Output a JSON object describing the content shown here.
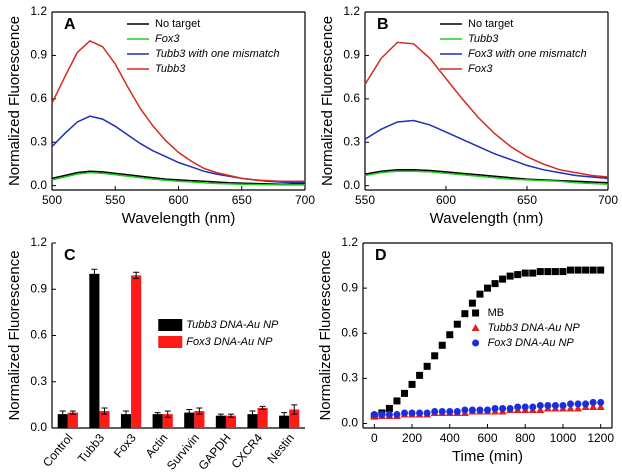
{
  "chart_data": [
    {
      "type": "line",
      "label": "A",
      "xlabel": "Wavelength (nm)",
      "ylabel": "Normalized Fluorescence",
      "x": [
        500,
        510,
        520,
        530,
        540,
        550,
        560,
        570,
        580,
        590,
        600,
        610,
        620,
        630,
        640,
        650,
        660,
        670,
        680,
        690,
        700
      ],
      "series": [
        {
          "name": "No target",
          "color": "#000000",
          "values": [
            0.05,
            0.07,
            0.09,
            0.1,
            0.095,
            0.085,
            0.075,
            0.065,
            0.055,
            0.045,
            0.04,
            0.035,
            0.03,
            0.025,
            0.02,
            0.018,
            0.015,
            0.012,
            0.01,
            0.01,
            0.01
          ]
        },
        {
          "name": "Fox3",
          "color": "#22cc22",
          "values": [
            0.04,
            0.06,
            0.08,
            0.09,
            0.085,
            0.075,
            0.065,
            0.055,
            0.045,
            0.038,
            0.03,
            0.025,
            0.02,
            0.015,
            0.012,
            0.01,
            0.008,
            0.006,
            0.005,
            0.005,
            0.005
          ]
        },
        {
          "name": "Tubb3 with one mismatch",
          "color": "#1f2fb8",
          "values": [
            0.27,
            0.36,
            0.44,
            0.48,
            0.46,
            0.41,
            0.35,
            0.29,
            0.24,
            0.2,
            0.16,
            0.13,
            0.1,
            0.08,
            0.065,
            0.05,
            0.04,
            0.03,
            0.025,
            0.02,
            0.02
          ]
        },
        {
          "name": "Tubb3",
          "color": "#d42a20",
          "values": [
            0.57,
            0.75,
            0.92,
            1.0,
            0.96,
            0.84,
            0.68,
            0.53,
            0.41,
            0.31,
            0.23,
            0.17,
            0.12,
            0.09,
            0.07,
            0.05,
            0.04,
            0.035,
            0.03,
            0.03,
            0.03
          ]
        }
      ],
      "xlim": [
        500,
        700
      ],
      "xticks": [
        500,
        550,
        600,
        650,
        700
      ],
      "ylim": [
        -0.03,
        1.2
      ],
      "yticks": [
        {
          "value": 0,
          "label": "0.0"
        },
        0.3,
        0.6,
        0.9,
        1.2
      ],
      "legend": "upper right"
    },
    {
      "type": "line",
      "label": "B",
      "xlabel": "Wavelength (nm)",
      "ylabel": "Normalized Fluorescence",
      "x": [
        550,
        560,
        570,
        580,
        590,
        600,
        610,
        620,
        630,
        640,
        650,
        660,
        670,
        680,
        690,
        700
      ],
      "series": [
        {
          "name": "No target",
          "color": "#000000",
          "values": [
            0.08,
            0.1,
            0.11,
            0.11,
            0.105,
            0.095,
            0.085,
            0.075,
            0.065,
            0.055,
            0.045,
            0.04,
            0.035,
            0.03,
            0.025,
            0.02
          ]
        },
        {
          "name": "Tubb3",
          "color": "#22cc22",
          "values": [
            0.07,
            0.09,
            0.1,
            0.1,
            0.095,
            0.085,
            0.075,
            0.065,
            0.055,
            0.045,
            0.04,
            0.035,
            0.03,
            0.02,
            0.015,
            0.01
          ]
        },
        {
          "name": "Fox3 with one mismatch",
          "color": "#1f2fb8",
          "values": [
            0.32,
            0.39,
            0.44,
            0.45,
            0.42,
            0.37,
            0.32,
            0.27,
            0.22,
            0.18,
            0.14,
            0.11,
            0.09,
            0.07,
            0.06,
            0.05
          ]
        },
        {
          "name": "Fox3",
          "color": "#d42a20",
          "values": [
            0.7,
            0.88,
            0.99,
            0.98,
            0.88,
            0.74,
            0.6,
            0.47,
            0.36,
            0.27,
            0.2,
            0.15,
            0.11,
            0.09,
            0.07,
            0.06
          ]
        }
      ],
      "xlim": [
        550,
        700
      ],
      "xticks": [
        550,
        600,
        650,
        700
      ],
      "ylim": [
        -0.03,
        1.2
      ],
      "yticks": [
        {
          "value": 0,
          "label": "0.0"
        },
        0.3,
        0.6,
        0.9,
        1.2
      ],
      "legend": "upper right"
    },
    {
      "type": "bar",
      "label": "C",
      "ylabel": "Normalized Fluorescence",
      "categories": [
        "Control",
        "Tubb3",
        "Fox3",
        "Actin",
        "Survivin",
        "GAPDH",
        "CXCR4",
        "Nestin"
      ],
      "series": [
        {
          "name": "Tubb3 DNA-Au NP",
          "color": "#000000",
          "values": [
            0.09,
            1.0,
            0.09,
            0.09,
            0.1,
            0.08,
            0.09,
            0.08
          ],
          "errors": [
            0.02,
            0.03,
            0.02,
            0.01,
            0.02,
            0.01,
            0.02,
            0.02
          ]
        },
        {
          "name": "Fox3 DNA-Au NP",
          "color": "#ff1a1a",
          "values": [
            0.1,
            0.11,
            0.99,
            0.09,
            0.11,
            0.08,
            0.13,
            0.12
          ],
          "errors": [
            0.01,
            0.02,
            0.02,
            0.02,
            0.02,
            0.01,
            0.01,
            0.03
          ]
        }
      ],
      "ylim": [
        0,
        1.2
      ],
      "yticks": [
        {
          "value": 0,
          "label": "0.0"
        },
        0.3,
        0.6,
        0.9,
        1.2
      ],
      "legend": "center right"
    },
    {
      "type": "scatter",
      "label": "D",
      "xlabel": "Time (min)",
      "ylabel": "Normalized Fluorescence",
      "x": [
        0,
        40,
        80,
        120,
        160,
        200,
        240,
        280,
        320,
        360,
        400,
        440,
        480,
        520,
        560,
        600,
        640,
        680,
        720,
        760,
        800,
        840,
        880,
        920,
        960,
        1000,
        1040,
        1080,
        1120,
        1160,
        1200
      ],
      "series": [
        {
          "name": "MB",
          "color": "#000000",
          "marker": "square",
          "values": [
            0.05,
            0.07,
            0.1,
            0.15,
            0.2,
            0.26,
            0.32,
            0.38,
            0.45,
            0.52,
            0.59,
            0.66,
            0.73,
            0.8,
            0.86,
            0.9,
            0.93,
            0.96,
            0.98,
            0.99,
            1.0,
            1.0,
            1.01,
            1.01,
            1.01,
            1.01,
            1.02,
            1.02,
            1.02,
            1.02,
            1.02
          ]
        },
        {
          "name": "Tubb3 DNA-Au NP",
          "color": "#e0201a",
          "marker": "triangle",
          "values": [
            0.05,
            0.05,
            0.05,
            0.05,
            0.06,
            0.06,
            0.06,
            0.06,
            0.07,
            0.07,
            0.07,
            0.07,
            0.07,
            0.08,
            0.08,
            0.08,
            0.08,
            0.08,
            0.09,
            0.09,
            0.09,
            0.09,
            0.09,
            0.1,
            0.1,
            0.1,
            0.1,
            0.1,
            0.11,
            0.11,
            0.11
          ]
        },
        {
          "name": "Fox3 DNA-Au NP",
          "color": "#1a2ee0",
          "marker": "circle",
          "values": [
            0.06,
            0.06,
            0.06,
            0.06,
            0.07,
            0.07,
            0.07,
            0.07,
            0.08,
            0.08,
            0.08,
            0.08,
            0.09,
            0.09,
            0.09,
            0.09,
            0.1,
            0.1,
            0.1,
            0.11,
            0.11,
            0.11,
            0.12,
            0.12,
            0.12,
            0.12,
            0.13,
            0.13,
            0.13,
            0.14,
            0.14
          ]
        }
      ],
      "xlim": [
        -60,
        1260
      ],
      "xticks": [
        0,
        200,
        400,
        600,
        800,
        1000,
        1200
      ],
      "ylim": [
        -0.03,
        1.2
      ],
      "yticks": [
        {
          "value": 0,
          "label": "0.0"
        },
        0.3,
        0.6,
        0.9,
        1.2
      ],
      "legend": "center right"
    }
  ]
}
